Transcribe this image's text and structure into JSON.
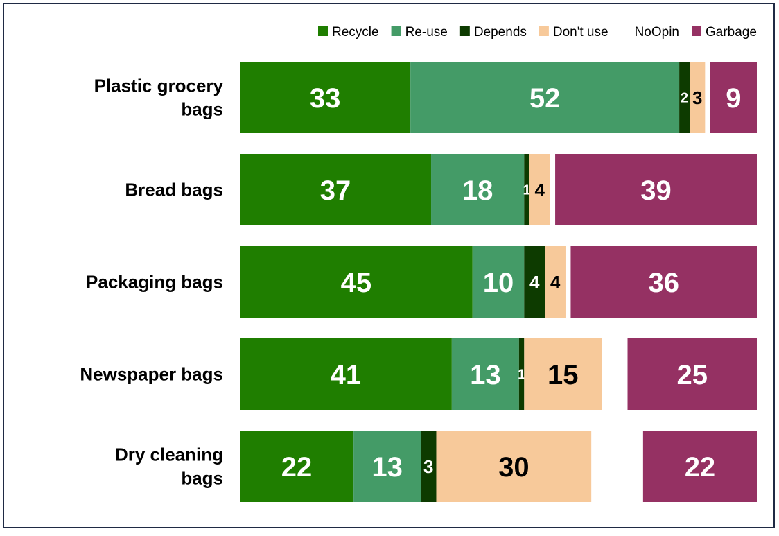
{
  "chart_data": {
    "type": "bar",
    "stacked": true,
    "orientation": "horizontal",
    "categories": [
      [
        "Plastic grocery",
        "bags"
      ],
      [
        "Bread bags"
      ],
      [
        "Packaging bags"
      ],
      [
        "Newspaper bags"
      ],
      [
        "Dry cleaning",
        "bags"
      ]
    ],
    "series": [
      {
        "name": "Recycle",
        "color": "#1f7e00",
        "label_color": "#ffffff",
        "values": [
          33,
          37,
          45,
          41,
          22
        ]
      },
      {
        "name": "Re-use",
        "color": "#449b67",
        "label_color": "#ffffff",
        "values": [
          52,
          18,
          10,
          13,
          13
        ]
      },
      {
        "name": "Depends",
        "color": "#0d3b00",
        "label_color": "#ffffff",
        "values": [
          2,
          1,
          4,
          1,
          3
        ]
      },
      {
        "name": "Don't use",
        "color": "#f7c99a",
        "label_color": "#000000",
        "values": [
          3,
          4,
          4,
          15,
          30
        ]
      },
      {
        "name": "NoOpin",
        "color": "#ffffff",
        "label_color": "#000000",
        "values": [
          1,
          1,
          1,
          5,
          10
        ]
      },
      {
        "name": "Garbage",
        "color": "#953163",
        "label_color": "#ffffff",
        "values": [
          9,
          39,
          36,
          25,
          22
        ]
      }
    ],
    "value_labels": {
      "Recycle": [
        "33",
        "37",
        "45",
        "41",
        "22"
      ],
      "Re-use": [
        "52",
        "18",
        "10",
        "13",
        "13"
      ],
      "Depends": [
        "2",
        "1",
        "4",
        "1",
        "3"
      ],
      "Don't use": [
        "3",
        "4",
        "4",
        "15",
        "30"
      ],
      "NoOpin": [
        "",
        "",
        "",
        "",
        ""
      ],
      "Garbage": [
        "9",
        "39",
        "36",
        "25",
        "22"
      ]
    },
    "legend": {
      "position": "top-right",
      "show_swatch": [
        true,
        true,
        true,
        true,
        false,
        true
      ]
    },
    "grid": false,
    "title": "",
    "xlabel": "",
    "ylabel": ""
  }
}
